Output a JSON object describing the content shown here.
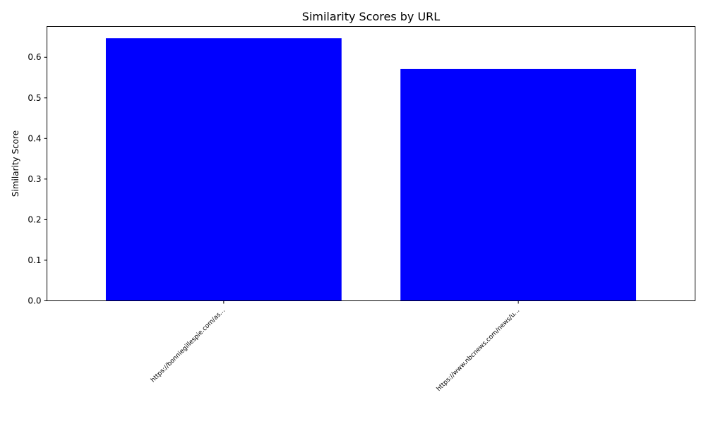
{
  "chart_data": {
    "type": "bar",
    "title": "Similarity Scores by URL",
    "xlabel": "",
    "ylabel": "Similarity Score",
    "categories": [
      "https://bonniegillespie.com/as...",
      "https://www.nbcnews.com/news/u..."
    ],
    "values": [
      0.647,
      0.571
    ],
    "ylim": [
      0,
      0.676
    ],
    "yticks": [
      0.0,
      0.1,
      0.2,
      0.3,
      0.4,
      0.5,
      0.6
    ],
    "ytick_labels": [
      "0.0",
      "0.1",
      "0.2",
      "0.3",
      "0.4",
      "0.5",
      "0.6"
    ],
    "grid": false,
    "bar_color": "#0000ff",
    "tick_label_rotation": "45 degrees"
  }
}
